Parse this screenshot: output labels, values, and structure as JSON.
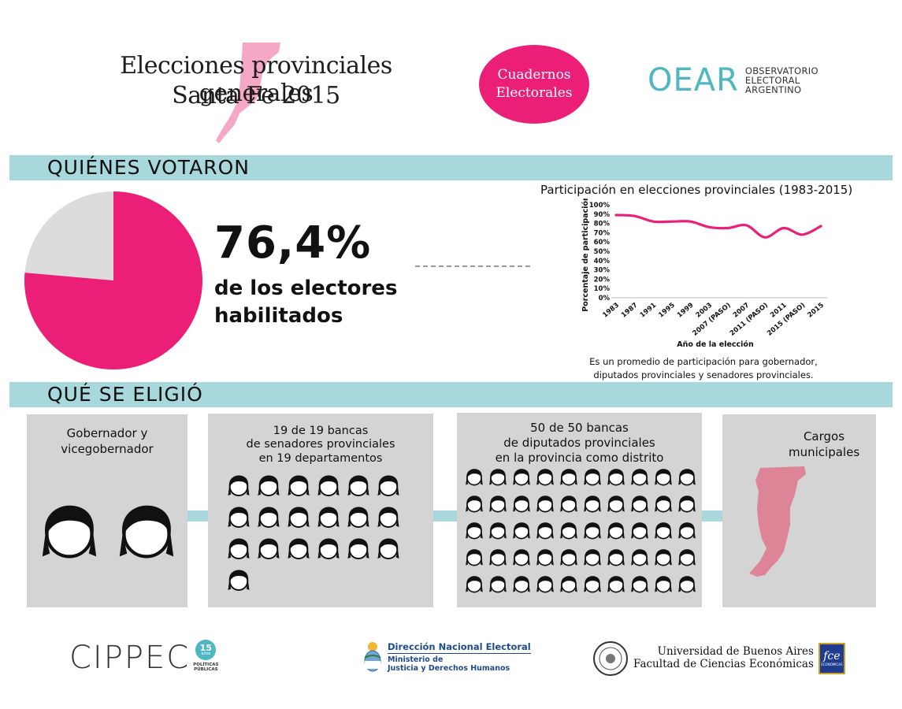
{
  "header": {
    "title_line1": "Elecciones provinciales generales",
    "title_line2": "Santa Fe 2015",
    "badge_line1": "Cuadernos",
    "badge_line2": "Electorales",
    "oear_mark": "OEAR",
    "oear_line1": "OBSERVATORIO",
    "oear_line2": "ELECTORAL",
    "oear_line3": "ARGENTINO",
    "accent_color": "#ec1f78",
    "band_color": "#a9d8dc"
  },
  "section1": {
    "title": "QUIÉNES VOTARON",
    "percent_value": 76.4,
    "percent_label": "76,4%",
    "sub_line1": "de los electores",
    "sub_line2": "habilitados"
  },
  "chart_data": {
    "type": "line",
    "title": "Participación en elecciones provinciales (1983-2015)",
    "xlabel": "Año de la elección",
    "ylabel": "Porcentaje de participación",
    "ylim": [
      0,
      100
    ],
    "y_ticks": [
      "0%",
      "10%",
      "20%",
      "30%",
      "40%",
      "50%",
      "60%",
      "70%",
      "80%",
      "90%",
      "100%"
    ],
    "categories": [
      "1983",
      "1987",
      "1991",
      "1995",
      "1999",
      "2003",
      "2007 (PASO)",
      "2007",
      "2011 (PASO)",
      "2011",
      "2015 (PASO)",
      "2015"
    ],
    "series": [
      {
        "name": "Participación",
        "values": [
          89,
          88,
          82,
          82,
          82,
          76,
          75,
          78,
          65,
          75,
          68,
          77
        ]
      }
    ],
    "note_line1": "Es un promedio de participación para gobernador,",
    "note_line2": "diputados provinciales y senadores provinciales."
  },
  "section2": {
    "title": "QUÉ SE ELIGIÓ",
    "cards": [
      {
        "line1": "Gobernador y",
        "line2": "vicegobernador",
        "line3": "",
        "count": 2
      },
      {
        "line1": "19 de 19 bancas",
        "line2": "de senadores provinciales",
        "line3": "en 19 departamentos",
        "count": 19
      },
      {
        "line1": "50 de 50 bancas",
        "line2": "de diputados provinciales",
        "line3": "en la provincia como distrito",
        "count": 50
      },
      {
        "line1": "Cargos",
        "line2": "municipales",
        "line3": ""
      }
    ]
  },
  "footer": {
    "cippec": "CIPPEC",
    "cippec_years": "15",
    "cippec_years_label": "años",
    "cippec_sub1": "POLÍTICAS",
    "cippec_sub2": "PÚBLICAS",
    "dne_title": "Dirección Nacional Electoral",
    "dne_sub1": "Ministerio de",
    "dne_sub2": "Justicia y Derechos Humanos",
    "uba_line1": "Universidad de Buenos Aires",
    "uba_line2": "Facultad de Ciencias Económicas",
    "fce_mark": "fce",
    "fce_sub": "ECONÓMICAS"
  }
}
